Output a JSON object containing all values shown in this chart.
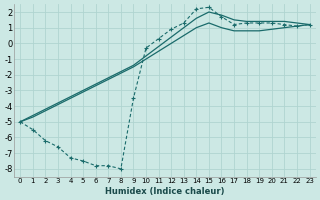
{
  "xlabel": "Humidex (Indice chaleur)",
  "bg_color": "#cce8e4",
  "grid_color": "#b0d4d0",
  "line_color": "#1a6b6b",
  "xlim": [
    -0.5,
    23.5
  ],
  "ylim": [
    -8.5,
    2.5
  ],
  "xticks": [
    0,
    1,
    2,
    3,
    4,
    5,
    6,
    7,
    8,
    9,
    10,
    11,
    12,
    13,
    14,
    15,
    16,
    17,
    18,
    19,
    20,
    21,
    22,
    23
  ],
  "yticks": [
    -8,
    -7,
    -6,
    -5,
    -4,
    -3,
    -2,
    -1,
    0,
    1,
    2
  ],
  "line1_x": [
    0,
    1,
    2,
    3,
    4,
    5,
    6,
    7,
    8,
    9,
    10,
    11,
    12,
    13,
    14,
    15,
    16,
    17,
    18,
    19,
    20,
    21,
    22,
    23
  ],
  "line1_y": [
    -5.0,
    -5.5,
    -6.2,
    -6.6,
    -7.3,
    -7.5,
    -7.8,
    -7.8,
    -8.0,
    -3.5,
    -0.3,
    0.3,
    0.9,
    1.3,
    2.2,
    2.3,
    1.7,
    1.2,
    1.3,
    1.3,
    1.3,
    1.2,
    1.1,
    1.2
  ],
  "line2_x": [
    0,
    1,
    2,
    3,
    4,
    5,
    6,
    7,
    8,
    9,
    10,
    11,
    12,
    13,
    14,
    15,
    16,
    17,
    18,
    19,
    20,
    21,
    22,
    23
  ],
  "line2_y": [
    -5.0,
    -4.7,
    -4.3,
    -3.9,
    -3.5,
    -3.1,
    -2.7,
    -2.3,
    -1.9,
    -1.5,
    -1.0,
    -0.5,
    0.0,
    0.5,
    1.0,
    1.3,
    1.0,
    0.8,
    0.8,
    0.8,
    0.9,
    1.0,
    1.1,
    1.2
  ],
  "line3_x": [
    0,
    1,
    2,
    3,
    4,
    5,
    6,
    7,
    8,
    9,
    10,
    11,
    12,
    13,
    14,
    15,
    16,
    17,
    18,
    19,
    20,
    21,
    22,
    23
  ],
  "line3_y": [
    -5.0,
    -4.6,
    -4.2,
    -3.8,
    -3.4,
    -3.0,
    -2.6,
    -2.2,
    -1.8,
    -1.4,
    -0.8,
    -0.2,
    0.4,
    1.0,
    1.6,
    2.0,
    1.8,
    1.5,
    1.4,
    1.4,
    1.4,
    1.4,
    1.3,
    1.2
  ]
}
